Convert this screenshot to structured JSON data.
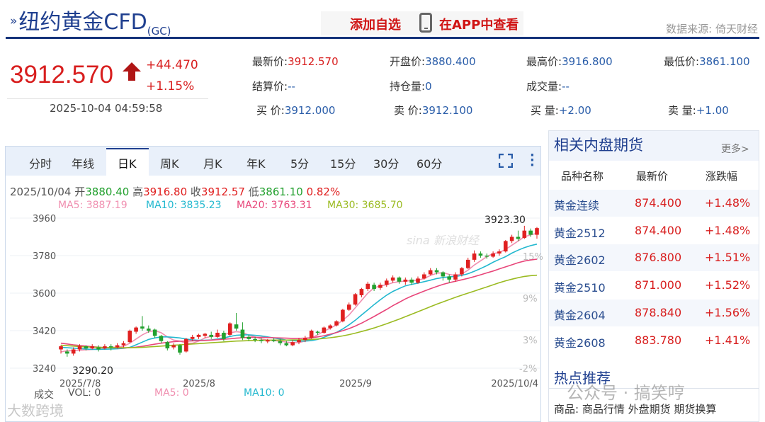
{
  "header": {
    "title": "纽约黄金CFD",
    "code": "(GC)",
    "add_favorite": "添加自选",
    "app_view": "在APP中查看",
    "source": "数据来源: 倚天财经"
  },
  "quote": {
    "price": "3912.570",
    "change": "+44.470",
    "change_pct": "+1.15%",
    "timestamp": "2025-10-04 04:59:58",
    "fields": [
      {
        "label": "最新价:",
        "value": "3912.570",
        "red": true
      },
      {
        "label": "开盘价:",
        "value": "3880.400",
        "red": false
      },
      {
        "label": "最高价:",
        "value": "3916.800",
        "red": false
      },
      {
        "label": "最低价:",
        "value": "3861.100",
        "red": false
      },
      {
        "label": "结算价:",
        "value": "--",
        "red": false
      },
      {
        "label": "持仓量:",
        "value": "0",
        "red": false
      },
      {
        "label": "成交量:",
        "value": "--",
        "red": false
      },
      {
        "label": "买  价:",
        "value": "3912.000",
        "red": false
      },
      {
        "label": "卖  价:",
        "value": "3912.100",
        "red": false
      },
      {
        "label": "买  量:",
        "value": "+2.00",
        "red": false
      },
      {
        "label": "卖  量:",
        "value": "+1.00",
        "red": false
      }
    ]
  },
  "tabs": [
    "分时",
    "年线",
    "日K",
    "周K",
    "月K",
    "年K",
    "5分",
    "15分",
    "30分",
    "60分"
  ],
  "active_tab": "日K",
  "info": {
    "date": "2025/10/04",
    "open_label": "开",
    "open": "3880.40",
    "high_label": "高",
    "high": "3916.80",
    "close_label": "收",
    "close": "3912.57",
    "low_label": "低",
    "low": "3861.10",
    "pct": "0.82%",
    "ma5": "MA5: 3887.19",
    "ma10": "MA10: 3835.23",
    "ma20": "MA20: 3763.31",
    "ma30": "MA30: 3685.70"
  },
  "chart_data": {
    "type": "candlestick",
    "y_ticks": [
      "3960",
      "3780",
      "3600",
      "3420",
      "3240"
    ],
    "pct_ticks": [
      "15%",
      "9%",
      "3%",
      "-2%"
    ],
    "x_ticks": [
      "2025/7/8",
      "2025/8",
      "2025/9",
      "2025/10/4"
    ],
    "ylim": [
      3180,
      3990
    ],
    "max_label": "3923.30",
    "min_label": "3290.20",
    "candles": [
      [
        3330,
        3345,
        3310,
        3350
      ],
      [
        3320,
        3310,
        3295,
        3330
      ],
      [
        3310,
        3330,
        3300,
        3340
      ],
      [
        3330,
        3345,
        3320,
        3355
      ],
      [
        3345,
        3335,
        3325,
        3350
      ],
      [
        3335,
        3345,
        3330,
        3355
      ],
      [
        3340,
        3330,
        3320,
        3350
      ],
      [
        3335,
        3345,
        3330,
        3355
      ],
      [
        3345,
        3340,
        3325,
        3355
      ],
      [
        3340,
        3350,
        3335,
        3360
      ],
      [
        3350,
        3360,
        3340,
        3370
      ],
      [
        3365,
        3420,
        3360,
        3425
      ],
      [
        3415,
        3435,
        3405,
        3440
      ],
      [
        3440,
        3430,
        3420,
        3490
      ],
      [
        3430,
        3420,
        3410,
        3445
      ],
      [
        3425,
        3395,
        3385,
        3430
      ],
      [
        3395,
        3370,
        3360,
        3400
      ],
      [
        3365,
        3335,
        3325,
        3370
      ],
      [
        3340,
        3350,
        3330,
        3360
      ],
      [
        3350,
        3315,
        3305,
        3355
      ],
      [
        3320,
        3380,
        3315,
        3385
      ],
      [
        3380,
        3390,
        3370,
        3400
      ],
      [
        3390,
        3400,
        3380,
        3405
      ],
      [
        3395,
        3405,
        3385,
        3410
      ],
      [
        3400,
        3390,
        3380,
        3415
      ],
      [
        3390,
        3410,
        3385,
        3425
      ],
      [
        3410,
        3380,
        3370,
        3420
      ],
      [
        3400,
        3455,
        3395,
        3460
      ],
      [
        3450,
        3430,
        3420,
        3505
      ],
      [
        3425,
        3385,
        3375,
        3460
      ],
      [
        3390,
        3380,
        3370,
        3400
      ],
      [
        3380,
        3375,
        3365,
        3390
      ],
      [
        3375,
        3370,
        3360,
        3385
      ],
      [
        3368,
        3375,
        3360,
        3380
      ],
      [
        3375,
        3370,
        3365,
        3385
      ],
      [
        3370,
        3360,
        3350,
        3380
      ],
      [
        3360,
        3350,
        3345,
        3370
      ],
      [
        3350,
        3365,
        3345,
        3375
      ],
      [
        3365,
        3375,
        3355,
        3385
      ],
      [
        3375,
        3385,
        3365,
        3395
      ],
      [
        3385,
        3420,
        3380,
        3425
      ],
      [
        3415,
        3410,
        3400,
        3420
      ],
      [
        3410,
        3435,
        3405,
        3440
      ],
      [
        3432,
        3445,
        3425,
        3450
      ],
      [
        3445,
        3465,
        3440,
        3470
      ],
      [
        3465,
        3520,
        3460,
        3525
      ],
      [
        3520,
        3545,
        3515,
        3555
      ],
      [
        3545,
        3595,
        3540,
        3600
      ],
      [
        3590,
        3620,
        3580,
        3625
      ],
      [
        3620,
        3645,
        3610,
        3655
      ],
      [
        3640,
        3620,
        3610,
        3650
      ],
      [
        3625,
        3640,
        3615,
        3650
      ],
      [
        3640,
        3660,
        3630,
        3670
      ],
      [
        3660,
        3675,
        3650,
        3685
      ],
      [
        3675,
        3655,
        3645,
        3680
      ],
      [
        3655,
        3665,
        3640,
        3675
      ],
      [
        3665,
        3650,
        3640,
        3675
      ],
      [
        3650,
        3670,
        3645,
        3680
      ],
      [
        3670,
        3690,
        3665,
        3700
      ],
      [
        3690,
        3710,
        3685,
        3720
      ],
      [
        3710,
        3700,
        3690,
        3720
      ],
      [
        3700,
        3680,
        3660,
        3705
      ],
      [
        3680,
        3665,
        3650,
        3690
      ],
      [
        3665,
        3690,
        3655,
        3700
      ],
      [
        3690,
        3720,
        3680,
        3725
      ],
      [
        3720,
        3760,
        3715,
        3770
      ],
      [
        3760,
        3790,
        3750,
        3805
      ],
      [
        3790,
        3780,
        3770,
        3800
      ],
      [
        3780,
        3775,
        3765,
        3790
      ],
      [
        3775,
        3790,
        3770,
        3800
      ],
      [
        3790,
        3800,
        3780,
        3810
      ],
      [
        3800,
        3850,
        3795,
        3855
      ],
      [
        3850,
        3870,
        3840,
        3880
      ],
      [
        3870,
        3860,
        3850,
        3900
      ],
      [
        3865,
        3900,
        3860,
        3923
      ],
      [
        3900,
        3880,
        3870,
        3910
      ],
      [
        3880,
        3912,
        3861,
        3917
      ]
    ],
    "ma_series": [
      {
        "name": "MA5",
        "color": "#f08fb0",
        "values": [
          3318,
          3324,
          3324,
          3326,
          3328,
          3330,
          3335,
          3336,
          3341,
          3340,
          3345,
          3360,
          3380,
          3400,
          3415,
          3420,
          3410,
          3390,
          3375,
          3370,
          3360,
          3360,
          3370,
          3385,
          3393,
          3395,
          3400,
          3410,
          3415,
          3412,
          3398,
          3390,
          3380,
          3375,
          3372,
          3370,
          3365,
          3362,
          3363,
          3370,
          3385,
          3400,
          3418,
          3432,
          3448,
          3470,
          3495,
          3530,
          3565,
          3600,
          3625,
          3635,
          3640,
          3650,
          3655,
          3658,
          3660,
          3662,
          3670,
          3685,
          3695,
          3698,
          3690,
          3685,
          3692,
          3710,
          3735,
          3755,
          3775,
          3790,
          3795,
          3810,
          3830,
          3850,
          3870,
          3880,
          3887
        ]
      },
      {
        "name": "MA10",
        "color": "#22b8cf",
        "values": [
          3340,
          3338,
          3336,
          3334,
          3332,
          3330,
          3330,
          3331,
          3332,
          3333,
          3335,
          3340,
          3352,
          3365,
          3378,
          3385,
          3390,
          3390,
          3388,
          3385,
          3380,
          3376,
          3374,
          3374,
          3376,
          3380,
          3385,
          3392,
          3398,
          3400,
          3400,
          3398,
          3395,
          3390,
          3385,
          3380,
          3375,
          3372,
          3370,
          3370,
          3372,
          3378,
          3388,
          3400,
          3412,
          3428,
          3448,
          3470,
          3495,
          3520,
          3545,
          3568,
          3590,
          3608,
          3622,
          3635,
          3642,
          3648,
          3655,
          3662,
          3670,
          3675,
          3678,
          3680,
          3685,
          3693,
          3705,
          3718,
          3732,
          3748,
          3762,
          3775,
          3792,
          3806,
          3818,
          3828,
          3835
        ]
      },
      {
        "name": "MA20",
        "color": "#e8467a",
        "values": [
          3360,
          3356,
          3352,
          3349,
          3346,
          3343,
          3341,
          3339,
          3338,
          3337,
          3337,
          3338,
          3341,
          3345,
          3350,
          3355,
          3360,
          3364,
          3367,
          3369,
          3370,
          3371,
          3372,
          3373,
          3375,
          3377,
          3379,
          3381,
          3384,
          3386,
          3388,
          3388,
          3388,
          3387,
          3386,
          3385,
          3384,
          3383,
          3383,
          3384,
          3386,
          3390,
          3396,
          3403,
          3411,
          3420,
          3430,
          3442,
          3456,
          3472,
          3488,
          3505,
          3522,
          3540,
          3556,
          3572,
          3586,
          3598,
          3610,
          3621,
          3632,
          3642,
          3650,
          3657,
          3664,
          3671,
          3679,
          3688,
          3697,
          3706,
          3716,
          3726,
          3736,
          3746,
          3754,
          3759,
          3763
        ]
      },
      {
        "name": "MA30",
        "color": "#9bbb22",
        "values": [
          3350,
          3348,
          3346,
          3344,
          3342,
          3341,
          3340,
          3339,
          3338,
          3338,
          3338,
          3338,
          3339,
          3340,
          3342,
          3344,
          3346,
          3348,
          3350,
          3352,
          3354,
          3356,
          3358,
          3360,
          3362,
          3364,
          3366,
          3368,
          3370,
          3371,
          3372,
          3373,
          3374,
          3374,
          3375,
          3375,
          3375,
          3376,
          3376,
          3377,
          3378,
          3380,
          3383,
          3386,
          3390,
          3395,
          3401,
          3408,
          3416,
          3424,
          3433,
          3443,
          3453,
          3464,
          3475,
          3487,
          3499,
          3511,
          3523,
          3535,
          3547,
          3558,
          3569,
          3580,
          3590,
          3600,
          3610,
          3620,
          3630,
          3640,
          3650,
          3659,
          3667,
          3674,
          3680,
          3684,
          3686
        ]
      }
    ]
  },
  "volume": {
    "label": "成交",
    "vol": "VOL: 0",
    "ma5": "MA5: 0",
    "ma10": "MA10: 0"
  },
  "related": {
    "title": "相关内盘期货",
    "more": "更多>",
    "columns": [
      "品种名称",
      "最新价",
      "涨跌幅"
    ],
    "rows": [
      {
        "name": "黄金连续",
        "price": "874.400",
        "pct": "+1.48%"
      },
      {
        "name": "黄金2512",
        "price": "874.400",
        "pct": "+1.48%"
      },
      {
        "name": "黄金2602",
        "price": "876.800",
        "pct": "+1.51%"
      },
      {
        "name": "黄金2510",
        "price": "871.000",
        "pct": "+1.52%"
      },
      {
        "name": "黄金2604",
        "price": "878.840",
        "pct": "+1.56%"
      },
      {
        "name": "黄金2608",
        "price": "883.780",
        "pct": "+1.41%"
      }
    ]
  },
  "hot": {
    "title": "热点推荐",
    "links": "商品: 商品行情 外盘期货 期货换算"
  },
  "watermarks": {
    "right": "公众号 · 搞笑哼",
    "left": "大数跨境",
    "sina": "sina 新浪财经"
  },
  "colors": {
    "up": "#e02020",
    "down": "#22a02e",
    "brand": "#1f3f8f"
  }
}
